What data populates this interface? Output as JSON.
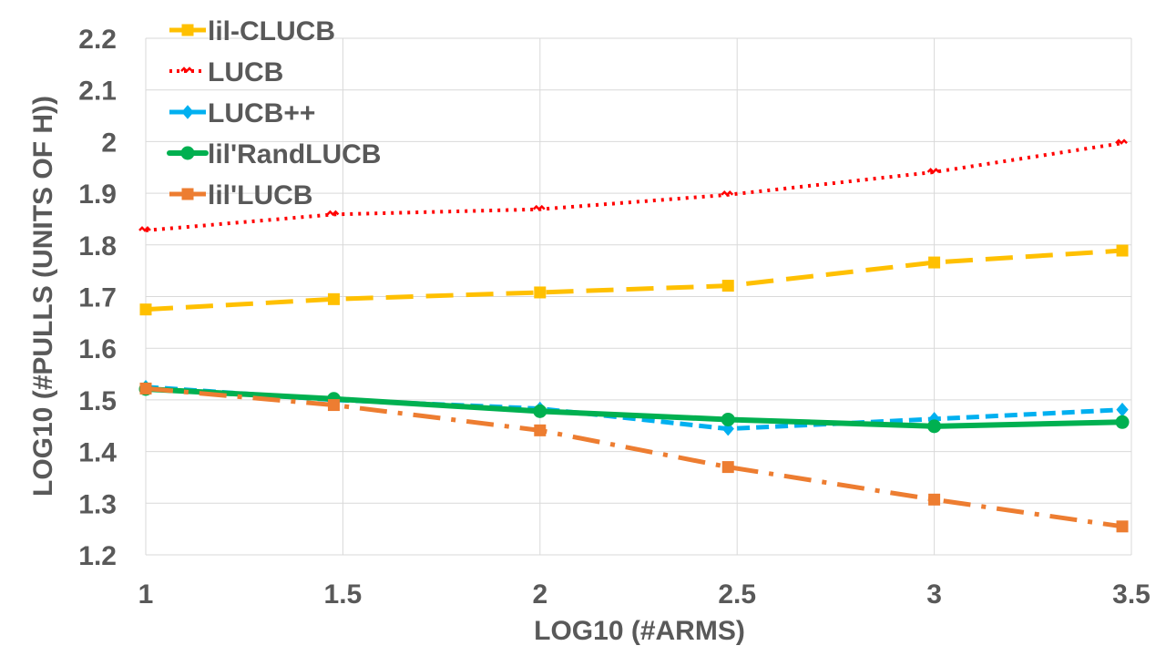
{
  "chart_data": {
    "type": "line",
    "xlabel": "LOG10 (#ARMS)",
    "ylabel": "LOG10 (#PULLS (UNITS OF H))",
    "xlim": [
      1,
      3.5
    ],
    "ylim": [
      1.2,
      2.2
    ],
    "x_ticks": [
      "1",
      "1.5",
      "2",
      "2.5",
      "3",
      "3.5"
    ],
    "y_ticks": [
      "1.2",
      "1.3",
      "1.4",
      "1.5",
      "1.6",
      "1.7",
      "1.8",
      "1.9",
      "2",
      "2.1",
      "2.2"
    ],
    "grid": true,
    "legend_position": "top-left",
    "x": [
      1,
      1.477,
      2,
      2.477,
      3,
      3.477
    ],
    "series": [
      {
        "name": "lil-CLUCB",
        "color": "#FFC000",
        "dash": "long-dash",
        "marker": "square",
        "values": [
          1.675,
          1.695,
          1.708,
          1.721,
          1.766,
          1.789
        ]
      },
      {
        "name": "LUCB",
        "color": "#FF0000",
        "dash": "dot",
        "marker": "dash",
        "values": [
          1.828,
          1.859,
          1.869,
          1.897,
          1.941,
          1.997
        ]
      },
      {
        "name": "LUCB++",
        "color": "#00B0F0",
        "dash": "short-dash",
        "marker": "diamond",
        "values": [
          1.525,
          1.5,
          1.483,
          1.444,
          1.463,
          1.481
        ]
      },
      {
        "name": "lil'RandLUCB",
        "color": "#00B050",
        "dash": "solid",
        "marker": "circle",
        "values": [
          1.521,
          1.502,
          1.478,
          1.462,
          1.449,
          1.457
        ]
      },
      {
        "name": "lil'LUCB",
        "color": "#ED7D31",
        "dash": "dash-dot",
        "marker": "square",
        "values": [
          1.522,
          1.49,
          1.441,
          1.37,
          1.307,
          1.255
        ]
      }
    ]
  }
}
